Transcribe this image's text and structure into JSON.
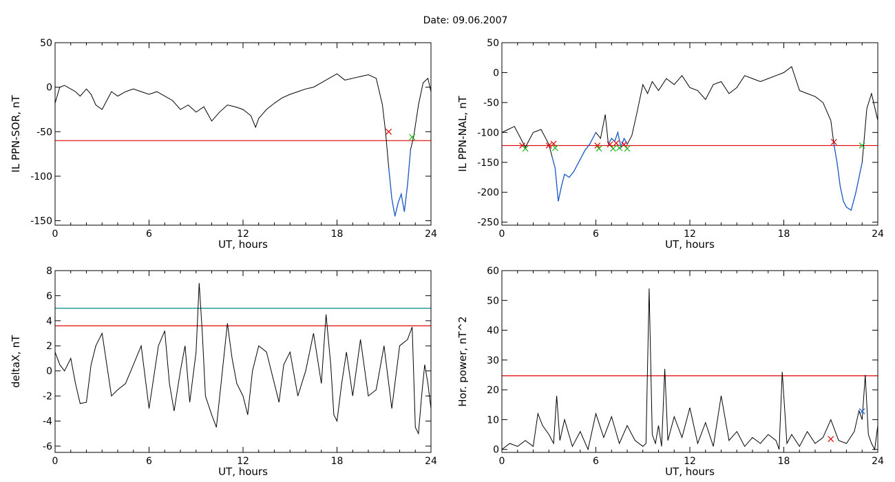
{
  "figure": {
    "title": "Date:  09.06.2007"
  },
  "colors": {
    "axis": "#000000",
    "trace": "#000000",
    "threshold_red": "#e00000",
    "threshold_teal": "#008b8b",
    "blue_segment": "#1f5fd0",
    "marker_red": "#e00000",
    "marker_green": "#19b419",
    "marker_blue": "#1f5fd0"
  },
  "chart_data": [
    {
      "id": "p1",
      "type": "line",
      "xlabel": "UT, hours",
      "ylabel": "IL PPN-SOR, nT",
      "xlim": [
        0,
        24
      ],
      "ylim": [
        -155,
        50
      ],
      "xticks": [
        0,
        6,
        12,
        18,
        24
      ],
      "yticks": [
        -150,
        -100,
        -50,
        0,
        50
      ],
      "series": [
        {
          "x": [
            0,
            0.3,
            0.6,
            1,
            1.3,
            1.6,
            2,
            2.3,
            2.6,
            3,
            3.3,
            3.6,
            4,
            4.5,
            5,
            5.5,
            6,
            6.5,
            7,
            7.5,
            8,
            8.5,
            9,
            9.5,
            10,
            10.5,
            11,
            11.5,
            12,
            12.5,
            12.8,
            13,
            13.5,
            14,
            14.5,
            15,
            15.5,
            16,
            16.5,
            17,
            17.5,
            18,
            18.5,
            19,
            19.5,
            20,
            20.5,
            20.9,
            21.1,
            21.3,
            21.5,
            21.7,
            21.9,
            22.1,
            22.3,
            22.5,
            22.7,
            22.9,
            23.2,
            23.5,
            23.8,
            24
          ],
          "y": [
            -18,
            0,
            2,
            -2,
            -5,
            -10,
            -2,
            -8,
            -20,
            -25,
            -15,
            -5,
            -10,
            -5,
            -2,
            -5,
            -8,
            -5,
            -10,
            -15,
            -25,
            -20,
            -28,
            -22,
            -38,
            -28,
            -20,
            -22,
            -25,
            -32,
            -45,
            -35,
            -25,
            -18,
            -12,
            -8,
            -5,
            -2,
            0,
            5,
            10,
            15,
            8,
            10,
            12,
            14,
            10,
            -20,
            -50,
            -90,
            -125,
            -145,
            -130,
            -120,
            -140,
            -110,
            -70,
            -55,
            -20,
            5,
            10,
            -5
          ]
        }
      ],
      "thresholds": [
        {
          "y": -60,
          "color": "red"
        }
      ],
      "blue_segments": [
        [
          21.3,
          22.8
        ]
      ],
      "markers": [
        {
          "x": 21.3,
          "y": -50,
          "color": "red",
          "symbol": "x"
        },
        {
          "x": 22.8,
          "y": -56,
          "color": "green",
          "symbol": "x"
        }
      ]
    },
    {
      "id": "p2",
      "type": "line",
      "xlabel": "UT, hours",
      "ylabel": "IL PPN-NAL, nT",
      "xlim": [
        0,
        24
      ],
      "ylim": [
        -255,
        50
      ],
      "xticks": [
        0,
        6,
        12,
        18,
        24
      ],
      "yticks": [
        -250,
        -200,
        -150,
        -100,
        -50,
        0,
        50
      ],
      "series": [
        {
          "x": [
            0,
            0.4,
            0.8,
            1.2,
            1.5,
            2,
            2.5,
            3,
            3.2,
            3.4,
            3.6,
            3.8,
            4,
            4.3,
            4.6,
            5,
            5.3,
            5.6,
            6,
            6.3,
            6.6,
            6.8,
            7,
            7.2,
            7.4,
            7.6,
            7.8,
            8,
            8.3,
            8.6,
            9,
            9.3,
            9.6,
            10,
            10.5,
            11,
            11.5,
            12,
            12.5,
            13,
            13.5,
            14,
            14.5,
            15,
            15.5,
            16,
            16.5,
            17,
            17.5,
            18,
            18.5,
            19,
            19.5,
            20,
            20.5,
            21,
            21.2,
            21.4,
            21.6,
            21.8,
            22,
            22.3,
            22.6,
            23,
            23.3,
            23.6,
            24
          ],
          "y": [
            -100,
            -95,
            -90,
            -110,
            -125,
            -100,
            -95,
            -120,
            -140,
            -160,
            -215,
            -190,
            -170,
            -175,
            -165,
            -145,
            -130,
            -120,
            -100,
            -110,
            -70,
            -120,
            -110,
            -115,
            -100,
            -125,
            -110,
            -120,
            -105,
            -70,
            -20,
            -35,
            -15,
            -30,
            -10,
            -20,
            -5,
            -25,
            -30,
            -45,
            -20,
            -15,
            -35,
            -25,
            -5,
            -10,
            -15,
            -10,
            -5,
            0,
            10,
            -30,
            -35,
            -40,
            -50,
            -80,
            -120,
            -150,
            -190,
            -215,
            -225,
            -230,
            -200,
            -150,
            -60,
            -35,
            -80
          ]
        }
      ],
      "thresholds": [
        {
          "y": -122,
          "color": "red"
        }
      ],
      "blue_segments": [
        [
          3.2,
          6.2
        ],
        [
          6.8,
          8.0
        ],
        [
          21.2,
          23.0
        ]
      ],
      "markers": [
        {
          "x": 1.3,
          "y": -122,
          "color": "red",
          "symbol": "x"
        },
        {
          "x": 1.5,
          "y": -127,
          "color": "green",
          "symbol": "x"
        },
        {
          "x": 3.0,
          "y": -122,
          "color": "red",
          "symbol": "x"
        },
        {
          "x": 3.3,
          "y": -119,
          "color": "red",
          "symbol": "x"
        },
        {
          "x": 3.4,
          "y": -126,
          "color": "green",
          "symbol": "x"
        },
        {
          "x": 6.1,
          "y": -122,
          "color": "red",
          "symbol": "x"
        },
        {
          "x": 6.2,
          "y": -127,
          "color": "green",
          "symbol": "x"
        },
        {
          "x": 6.9,
          "y": -120,
          "color": "red",
          "symbol": "x"
        },
        {
          "x": 7.1,
          "y": -127,
          "color": "green",
          "symbol": "x"
        },
        {
          "x": 7.3,
          "y": -118,
          "color": "red",
          "symbol": "x"
        },
        {
          "x": 7.5,
          "y": -126,
          "color": "green",
          "symbol": "x"
        },
        {
          "x": 7.8,
          "y": -120,
          "color": "red",
          "symbol": "x"
        },
        {
          "x": 8.0,
          "y": -127,
          "color": "green",
          "symbol": "x"
        },
        {
          "x": 21.2,
          "y": -116,
          "color": "red",
          "symbol": "x"
        },
        {
          "x": 23.0,
          "y": -122,
          "color": "green",
          "symbol": "x"
        }
      ]
    },
    {
      "id": "p3",
      "type": "line",
      "xlabel": "UT, hours",
      "ylabel": "deltaX, nT",
      "xlim": [
        0,
        24
      ],
      "ylim": [
        -6.5,
        8
      ],
      "xticks": [
        0,
        6,
        12,
        18,
        24
      ],
      "yticks": [
        -6,
        -4,
        -2,
        0,
        2,
        4,
        6,
        8
      ],
      "series": [
        {
          "x": [
            0,
            0.3,
            0.6,
            1,
            1.3,
            1.6,
            2,
            2.3,
            2.6,
            3,
            3.3,
            3.6,
            4,
            4.5,
            5,
            5.5,
            6,
            6.3,
            6.6,
            7,
            7.3,
            7.6,
            8,
            8.3,
            8.6,
            9,
            9.2,
            9.4,
            9.6,
            10,
            10.3,
            10.6,
            11,
            11.3,
            11.6,
            12,
            12.3,
            12.6,
            13,
            13.5,
            14,
            14.3,
            14.6,
            15,
            15.5,
            16,
            16.5,
            17,
            17.3,
            17.6,
            17.8,
            18,
            18.3,
            18.6,
            19,
            19.5,
            20,
            20.5,
            21,
            21.5,
            22,
            22.5,
            22.8,
            23,
            23.2,
            23.4,
            23.6,
            23.8,
            24
          ],
          "y": [
            1.5,
            0.5,
            0,
            1,
            -1,
            -2.6,
            -2.5,
            0.5,
            2,
            3,
            0.5,
            -2,
            -1.5,
            -1,
            0.5,
            2,
            -3,
            -0.5,
            2,
            3.2,
            -1,
            -3.2,
            0,
            2,
            -2.5,
            1.5,
            7,
            3,
            -2,
            -3.5,
            -4.5,
            -1,
            3.8,
            1,
            -1,
            -2,
            -3.5,
            0,
            2,
            1.5,
            -1,
            -2.5,
            0.5,
            1.5,
            -2,
            0,
            3,
            -1,
            4.5,
            0.5,
            -3.5,
            -4,
            -1,
            1.5,
            -2,
            2.5,
            -2,
            -1.5,
            2,
            -3,
            2,
            2.5,
            3.5,
            -4.5,
            -5,
            -2,
            0.5,
            -1,
            -3
          ]
        }
      ],
      "thresholds": [
        {
          "y": 5,
          "color": "teal"
        },
        {
          "y": 3.6,
          "color": "red"
        }
      ],
      "blue_segments": [],
      "markers": []
    },
    {
      "id": "p4",
      "type": "line",
      "xlabel": "UT, hours",
      "ylabel": "Hor. power, nT^2",
      "xlim": [
        0,
        24
      ],
      "ylim": [
        -1,
        60
      ],
      "xticks": [
        0,
        6,
        12,
        18,
        24
      ],
      "yticks": [
        0,
        10,
        20,
        30,
        40,
        50,
        60
      ],
      "series": [
        {
          "x": [
            0,
            0.5,
            1,
            1.5,
            2,
            2.3,
            2.6,
            3,
            3.3,
            3.5,
            3.7,
            4,
            4.5,
            5,
            5.5,
            6,
            6.5,
            7,
            7.5,
            8,
            8.5,
            9,
            9.2,
            9.4,
            9.6,
            9.8,
            10,
            10.2,
            10.4,
            10.6,
            11,
            11.5,
            12,
            12.5,
            13,
            13.5,
            14,
            14.5,
            15,
            15.5,
            16,
            16.5,
            17,
            17.5,
            17.7,
            17.9,
            18.2,
            18.5,
            19,
            19.5,
            20,
            20.5,
            21,
            21.5,
            22,
            22.5,
            22.8,
            23,
            23.2,
            23.4,
            23.6,
            23.8,
            24
          ],
          "y": [
            0,
            2,
            1,
            3,
            1,
            12,
            8,
            5,
            2,
            18,
            3,
            10,
            1,
            6,
            0,
            12,
            4,
            11,
            2,
            8,
            3,
            1,
            2,
            54,
            5,
            2,
            8,
            1,
            27,
            3,
            11,
            4,
            14,
            2,
            9,
            1,
            18,
            3,
            6,
            1,
            4,
            2,
            5,
            3,
            0,
            26,
            2,
            5,
            1,
            6,
            2,
            4,
            10,
            3,
            2,
            6,
            13,
            10,
            25,
            5,
            2,
            0,
            8
          ]
        }
      ],
      "thresholds": [
        {
          "y": 24.7,
          "color": "red"
        }
      ],
      "blue_segments": [],
      "markers": [
        {
          "x": 21.0,
          "y": 3.5,
          "color": "red",
          "symbol": "x"
        },
        {
          "x": 23.0,
          "y": 12.8,
          "color": "blue",
          "symbol": "x"
        }
      ]
    }
  ]
}
